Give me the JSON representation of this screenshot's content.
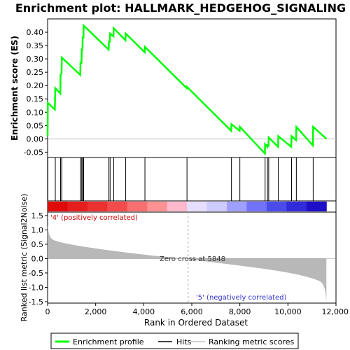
{
  "chart_data": {
    "type": "line",
    "title": "Enrichment plot: HALLMARK_HEDGEHOG_SIGNALING",
    "xlabel": "Rank in Ordered Dataset",
    "ylabel_top": "Enrichment score (ES)",
    "ylabel_bottom": "Ranked list metric (Signal2Noise)",
    "xlim": [
      0,
      12000
    ],
    "x_ticks": [
      0,
      2000,
      4000,
      6000,
      8000,
      10000,
      12000
    ],
    "x_tick_labels": [
      "0",
      "2,000",
      "4,000",
      "6,000",
      "8,000",
      "10,000",
      "12,000"
    ],
    "es_ylim": [
      -0.07,
      0.45
    ],
    "es_ticks": [
      -0.05,
      0.0,
      0.05,
      0.1,
      0.15,
      0.2,
      0.25,
      0.3,
      0.35,
      0.4
    ],
    "es_tick_labels": [
      "-0.05",
      "0.00",
      "0.05",
      "0.10",
      "0.15",
      "0.20",
      "0.25",
      "0.30",
      "0.35",
      "0.40"
    ],
    "metric_ylim": [
      -1.55,
      1.62
    ],
    "metric_ticks": [
      -1.5,
      -1.0,
      -0.5,
      0.0,
      0.5,
      1.0,
      1.5
    ],
    "metric_tick_labels": [
      "-1.5",
      "-1.0",
      "-0.5",
      "0.0",
      "0.5",
      "1.0",
      "1.5"
    ],
    "total_ranks": 11600,
    "zero_cross_rank": 5848,
    "annotations": {
      "positive": "'4' (positively correlated)",
      "negative": "'5' (negatively correlated)",
      "zero_cross": "Zero cross at 5848"
    },
    "hits": [
      10,
      320,
      540,
      590,
      1370,
      1420,
      1460,
      1500,
      2550,
      2600,
      2750,
      3250,
      4050,
      5800,
      7650,
      8000,
      9050,
      9150,
      9200,
      9600,
      10150,
      10350,
      11050
    ],
    "series": [
      {
        "name": "Enrichment profile",
        "color": "#00ff00",
        "x": [
          0,
          10,
          300,
          320,
          530,
          540,
          580,
          590,
          1360,
          1370,
          1410,
          1420,
          1450,
          1460,
          1490,
          1500,
          2540,
          2550,
          2590,
          2600,
          2740,
          2750,
          3240,
          3250,
          4040,
          4050,
          5790,
          5800,
          7640,
          7650,
          7990,
          8000,
          9040,
          9050,
          9140,
          9150,
          9190,
          9200,
          9590,
          9600,
          10140,
          10150,
          10340,
          10350,
          11040,
          11050,
          11600
        ],
        "y": [
          0.01,
          0.135,
          0.11,
          0.19,
          0.17,
          0.24,
          0.245,
          0.305,
          0.24,
          0.285,
          0.285,
          0.335,
          0.335,
          0.38,
          0.38,
          0.425,
          0.335,
          0.365,
          0.365,
          0.395,
          0.385,
          0.415,
          0.37,
          0.395,
          0.325,
          0.345,
          0.19,
          0.195,
          0.03,
          0.055,
          0.03,
          0.045,
          -0.055,
          -0.02,
          -0.03,
          -0.02,
          -0.03,
          0.005,
          -0.03,
          0.01,
          -0.03,
          0.01,
          -0.005,
          0.045,
          -0.025,
          0.045,
          0.0
        ]
      },
      {
        "name": "Hits",
        "color": "#000000"
      },
      {
        "name": "Ranking metric scores",
        "color": "#c0c0c0"
      }
    ],
    "legend_position": "bottom"
  }
}
